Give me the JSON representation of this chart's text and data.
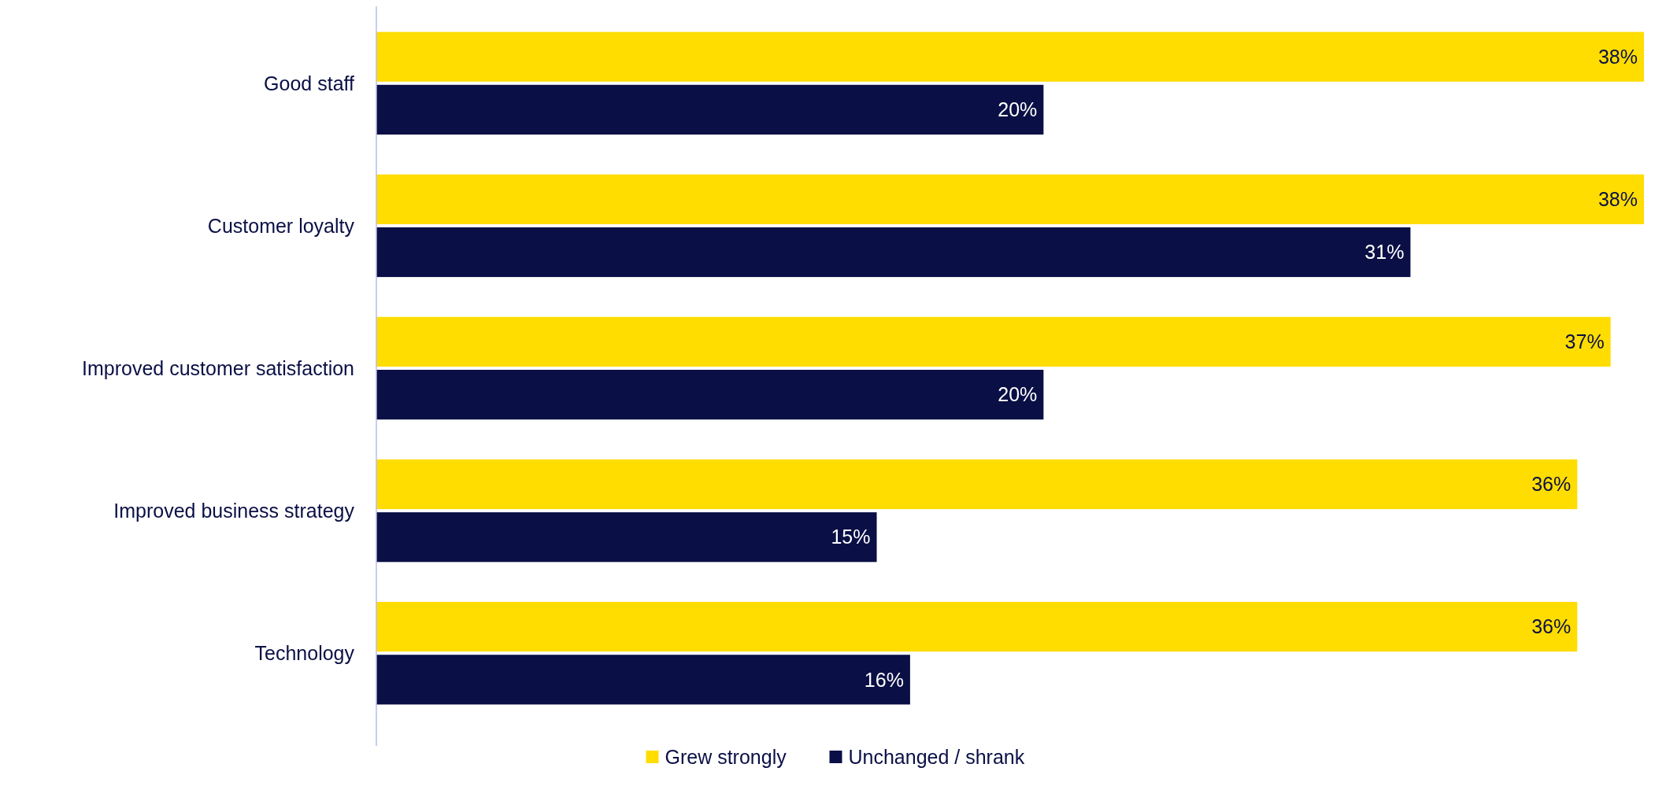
{
  "chart_data": {
    "type": "bar",
    "orientation": "horizontal",
    "categories": [
      "Good staff",
      "Customer loyalty",
      "Improved customer satisfaction",
      "Improved business strategy",
      "Technology"
    ],
    "series": [
      {
        "name": "Grew strongly",
        "color": "#ffdd00",
        "values": [
          38,
          38,
          37,
          36,
          36
        ],
        "value_labels": [
          "38%",
          "38%",
          "37%",
          "36%",
          "36%"
        ]
      },
      {
        "name": "Unchanged / shrank",
        "color": "#0a0f45",
        "values": [
          20,
          31,
          20,
          15,
          16
        ],
        "value_labels": [
          "20%",
          "31%",
          "20%",
          "15%",
          "16%"
        ]
      }
    ],
    "legend": "bottom"
  }
}
